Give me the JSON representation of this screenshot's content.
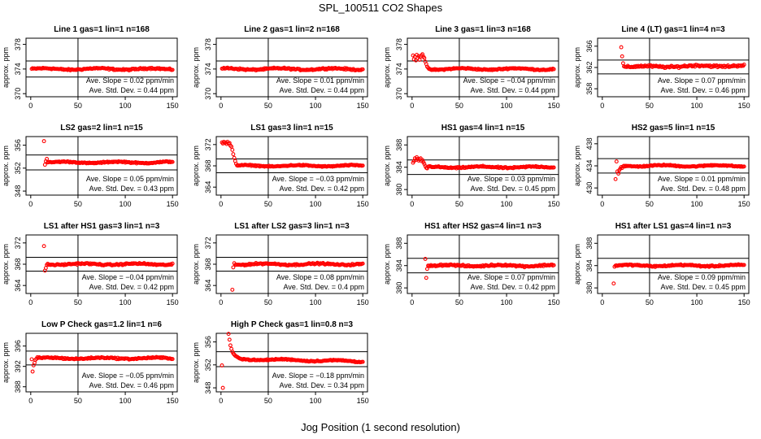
{
  "title": "SPL_100511  CO2 Shapes",
  "xlabel": "Jog Position (1 second resolution)",
  "chart_data": [
    {
      "type": "scatter",
      "title": "Line 1 gas=1 lin=1 n=168",
      "ylabel": "approx. ppm",
      "xlim": [
        -5,
        155
      ],
      "ylim": [
        369.5,
        379
      ],
      "xticks": [
        0,
        50,
        100,
        150
      ],
      "yticks": [
        370,
        374,
        378
      ],
      "hlines": [
        375.3,
        372.7
      ],
      "vline": 50,
      "baseline": 374.0,
      "noise": 0.18,
      "start_x": 1,
      "end_x": 150,
      "slope": 0.0,
      "early": [],
      "annotation": {
        "slope": "Ave. Slope =  0.02  ppm/min",
        "std": "Ave. Std. Dev. =  0.44  ppm"
      }
    },
    {
      "type": "scatter",
      "title": "Line 2 gas=1 lin=2 n=168",
      "ylabel": "approx. ppm",
      "xlim": [
        -5,
        155
      ],
      "ylim": [
        369.5,
        379
      ],
      "xticks": [
        0,
        50,
        100,
        150
      ],
      "yticks": [
        370,
        374,
        378
      ],
      "hlines": [
        375.3,
        372.7
      ],
      "vline": 50,
      "baseline": 374.0,
      "noise": 0.18,
      "start_x": 1,
      "end_x": 150,
      "slope": 0.0,
      "early": [],
      "annotation": {
        "slope": "Ave. Slope =  0.01  ppm/min",
        "std": "Ave. Std. Dev. =  0.44  ppm"
      }
    },
    {
      "type": "scatter",
      "title": "Line 3 gas=1 lin=3 n=168",
      "ylabel": "approx. ppm",
      "xlim": [
        -5,
        155
      ],
      "ylim": [
        369.5,
        379
      ],
      "xticks": [
        0,
        50,
        100,
        150
      ],
      "yticks": [
        370,
        374,
        378
      ],
      "hlines": [
        375.3,
        372.7
      ],
      "vline": 50,
      "baseline": 374.0,
      "noise": 0.15,
      "start_x": 18,
      "end_x": 150,
      "slope": 0.0,
      "early": [
        [
          1,
          376.2
        ],
        [
          2,
          375.6
        ],
        [
          3,
          376.0
        ],
        [
          4,
          375.4
        ],
        [
          5,
          376.3
        ],
        [
          6,
          375.8
        ],
        [
          7,
          376.1
        ],
        [
          8,
          375.5
        ],
        [
          9,
          376.0
        ],
        [
          10,
          376.2
        ],
        [
          11,
          376.4
        ],
        [
          12,
          376.0
        ],
        [
          13,
          375.8
        ],
        [
          14,
          375.2
        ],
        [
          15,
          374.8
        ],
        [
          16,
          374.4
        ],
        [
          17,
          374.2
        ]
      ],
      "annotation": {
        "slope": "Ave. Slope =  −0.04  ppm/min",
        "std": "Ave. Std. Dev. =  0.44  ppm"
      }
    },
    {
      "type": "scatter",
      "title": "Line 4 (LT) gas=1 lin=4 n=3",
      "ylabel": "approx. ppm",
      "xlim": [
        -5,
        155
      ],
      "ylim": [
        356.5,
        367.5
      ],
      "xticks": [
        0,
        50,
        100,
        150
      ],
      "yticks": [
        358,
        362,
        366
      ],
      "hlines": [
        363.4,
        360.8
      ],
      "vline": 50,
      "baseline": 362.1,
      "noise": 0.3,
      "start_x": 24,
      "end_x": 150,
      "slope": 0.002,
      "early": [
        [
          20,
          365.8
        ],
        [
          21,
          364.1
        ],
        [
          22,
          362.8
        ],
        [
          23,
          362.2
        ]
      ],
      "annotation": {
        "slope": "Ave. Slope =  0.07  ppm/min",
        "std": "Ave. Std. Dev. =  0.46  ppm"
      }
    },
    {
      "type": "scatter",
      "title": "LS2 gas=2 lin=1 n=15",
      "ylabel": "approx. ppm",
      "xlim": [
        -5,
        155
      ],
      "ylim": [
        347.3,
        357.5
      ],
      "xticks": [
        0,
        50,
        100,
        150
      ],
      "yticks": [
        348,
        352,
        356
      ],
      "hlines": [
        354.3,
        351.7
      ],
      "vline": 50,
      "baseline": 353.0,
      "noise": 0.15,
      "start_x": 18,
      "end_x": 150,
      "slope": 0.0,
      "early": [
        [
          14,
          356.7
        ],
        [
          15,
          352.6
        ],
        [
          16,
          353.2
        ],
        [
          17,
          353.6
        ]
      ],
      "annotation": {
        "slope": "Ave. Slope =  0.05  ppm/min",
        "std": "Ave. Std. Dev. =  0.43  ppm"
      }
    },
    {
      "type": "scatter",
      "title": "LS1 gas=3 lin=1 n=15",
      "ylabel": "approx. ppm",
      "xlim": [
        -5,
        155
      ],
      "ylim": [
        362.5,
        373.5
      ],
      "xticks": [
        0,
        50,
        100,
        150
      ],
      "yticks": [
        364,
        368,
        372
      ],
      "hlines": [
        369.3,
        366.7
      ],
      "vline": 50,
      "baseline": 368.0,
      "noise": 0.15,
      "start_x": 17,
      "end_x": 150,
      "slope": 0.0,
      "early": [
        [
          1,
          372.4
        ],
        [
          2,
          372.2
        ],
        [
          3,
          372.5
        ],
        [
          4,
          372.3
        ],
        [
          5,
          372.4
        ],
        [
          6,
          372.1
        ],
        [
          7,
          372.5
        ],
        [
          8,
          372.2
        ],
        [
          9,
          372.3
        ],
        [
          10,
          371.8
        ],
        [
          11,
          371.6
        ],
        [
          12,
          371.0
        ],
        [
          13,
          370.2
        ],
        [
          14,
          369.5
        ],
        [
          15,
          368.9
        ],
        [
          16,
          368.4
        ]
      ],
      "annotation": {
        "slope": "Ave. Slope =  −0.03  ppm/min",
        "std": "Ave. Std. Dev. =  0.42  ppm"
      }
    },
    {
      "type": "scatter",
      "title": "HS1 gas=4 lin=1 n=15",
      "ylabel": "approx. ppm",
      "xlim": [
        -5,
        155
      ],
      "ylim": [
        379,
        389.5
      ],
      "xticks": [
        0,
        50,
        100,
        150
      ],
      "yticks": [
        380,
        384,
        388
      ],
      "hlines": [
        385.3,
        382.7
      ],
      "vline": 50,
      "baseline": 384.0,
      "noise": 0.18,
      "start_x": 18,
      "end_x": 150,
      "slope": 0.0,
      "early": [
        [
          1,
          384.8
        ],
        [
          2,
          385.1
        ],
        [
          3,
          385.6
        ],
        [
          4,
          385.3
        ],
        [
          5,
          385.8
        ],
        [
          6,
          385.5
        ],
        [
          7,
          385.2
        ],
        [
          8,
          385.4
        ],
        [
          9,
          385.6
        ],
        [
          10,
          385.1
        ],
        [
          11,
          385.3
        ],
        [
          12,
          384.9
        ],
        [
          13,
          384.6
        ],
        [
          14,
          384.2
        ],
        [
          15,
          383.9
        ],
        [
          16,
          383.8
        ],
        [
          17,
          384.1
        ]
      ],
      "annotation": {
        "slope": "Ave. Slope =  0.03  ppm/min",
        "std": "Ave. Std. Dev. =  0.45  ppm"
      }
    },
    {
      "type": "scatter",
      "title": "HS2 gas=5 lin=1 n=15",
      "ylabel": "approx. ppm",
      "xlim": [
        -5,
        155
      ],
      "ylim": [
        428.7,
        439.3
      ],
      "xticks": [
        0,
        50,
        100,
        150
      ],
      "yticks": [
        430,
        434,
        438
      ],
      "hlines": [
        435.3,
        432.7
      ],
      "vline": 50,
      "baseline": 434.0,
      "noise": 0.15,
      "start_x": 24,
      "end_x": 150,
      "slope": 0.0,
      "early": [
        [
          14,
          431.6
        ],
        [
          15,
          434.8
        ],
        [
          16,
          433.0
        ],
        [
          17,
          432.6
        ],
        [
          18,
          433.2
        ],
        [
          19,
          433.5
        ],
        [
          20,
          433.8
        ],
        [
          21,
          433.6
        ],
        [
          22,
          433.9
        ],
        [
          23,
          434.0
        ]
      ],
      "annotation": {
        "slope": "Ave. Slope =  0.01  ppm/min",
        "std": "Ave. Std. Dev. =  0.48  ppm"
      }
    },
    {
      "type": "scatter",
      "title": "LS1 after HS1 gas=3 lin=1 n=3",
      "ylabel": "approx. ppm",
      "xlim": [
        -5,
        155
      ],
      "ylim": [
        362.5,
        373.5
      ],
      "xticks": [
        0,
        50,
        100,
        150
      ],
      "yticks": [
        364,
        368,
        372
      ],
      "hlines": [
        369.3,
        366.7
      ],
      "vline": 50,
      "baseline": 368.0,
      "noise": 0.2,
      "start_x": 18,
      "end_x": 150,
      "slope": 0.0,
      "early": [
        [
          14,
          371.4
        ],
        [
          15,
          366.8
        ],
        [
          16,
          367.3
        ],
        [
          17,
          367.9
        ]
      ],
      "annotation": {
        "slope": "Ave. Slope =  −0.04  ppm/min",
        "std": "Ave. Std. Dev. =  0.42  ppm"
      }
    },
    {
      "type": "scatter",
      "title": "LS1 after LS2 gas=3 lin=1 n=3",
      "ylabel": "approx. ppm",
      "xlim": [
        -5,
        155
      ],
      "ylim": [
        362.5,
        373.5
      ],
      "xticks": [
        0,
        50,
        100,
        150
      ],
      "yticks": [
        364,
        368,
        372
      ],
      "hlines": [
        369.3,
        366.7
      ],
      "vline": 50,
      "baseline": 368.0,
      "noise": 0.2,
      "start_x": 15,
      "end_x": 150,
      "slope": 0.0,
      "early": [
        [
          12,
          363.2
        ],
        [
          13,
          367.4
        ],
        [
          14,
          368.2
        ]
      ],
      "annotation": {
        "slope": "Ave. Slope =  0.08  ppm/min",
        "std": "Ave. Std. Dev. =  0.4  ppm"
      }
    },
    {
      "type": "scatter",
      "title": "HS1 after HS2 gas=4 lin=1 n=3",
      "ylabel": "approx. ppm",
      "xlim": [
        -5,
        155
      ],
      "ylim": [
        379,
        389.5
      ],
      "xticks": [
        0,
        50,
        100,
        150
      ],
      "yticks": [
        380,
        384,
        388
      ],
      "hlines": [
        385.3,
        382.7
      ],
      "vline": 50,
      "baseline": 384.0,
      "noise": 0.22,
      "start_x": 18,
      "end_x": 150,
      "slope": 0.0,
      "early": [
        [
          14,
          385.2
        ],
        [
          15,
          381.8
        ],
        [
          16,
          383.4
        ],
        [
          17,
          384.0
        ]
      ],
      "annotation": {
        "slope": "Ave. Slope =  0.07  ppm/min",
        "std": "Ave. Std. Dev. =  0.42  ppm"
      }
    },
    {
      "type": "scatter",
      "title": "HS1 after LS1 gas=4 lin=1 n=3",
      "ylabel": "approx. ppm",
      "xlim": [
        -5,
        155
      ],
      "ylim": [
        379,
        389.5
      ],
      "xticks": [
        0,
        50,
        100,
        150
      ],
      "yticks": [
        380,
        384,
        388
      ],
      "hlines": [
        385.3,
        382.7
      ],
      "vline": 50,
      "baseline": 384.0,
      "noise": 0.18,
      "start_x": 15,
      "end_x": 150,
      "slope": 0.0,
      "early": [
        [
          12,
          380.8
        ],
        [
          13,
          383.8
        ],
        [
          14,
          384.0
        ]
      ],
      "annotation": {
        "slope": "Ave. Slope =  0.09  ppm/min",
        "std": "Ave. Std. Dev. =  0.45  ppm"
      }
    },
    {
      "type": "scatter",
      "title": "Low P Check gas=1.2 lin=1 n=6",
      "ylabel": "approx. ppm",
      "xlim": [
        -5,
        155
      ],
      "ylim": [
        387,
        398.5
      ],
      "xticks": [
        0,
        50,
        100,
        150
      ],
      "yticks": [
        388,
        392,
        396
      ],
      "hlines": [
        395.0,
        392.3
      ],
      "vline": 50,
      "baseline": 393.6,
      "noise": 0.2,
      "start_x": 8,
      "end_x": 150,
      "slope": 0.0,
      "early": [
        [
          1,
          393.4
        ],
        [
          2,
          391.0
        ],
        [
          3,
          392.2
        ],
        [
          4,
          392.7
        ],
        [
          5,
          393.3
        ],
        [
          6,
          393.5
        ],
        [
          7,
          393.8
        ]
      ],
      "annotation": {
        "slope": "Ave. Slope =  −0.05  ppm/min",
        "std": "Ave. Std. Dev. =  0.46  ppm"
      }
    },
    {
      "type": "scatter",
      "title": "High P Check gas=1 lin=0.8 n=3",
      "ylabel": "approx. ppm",
      "xlim": [
        -5,
        155
      ],
      "ylim": [
        347.3,
        357.5
      ],
      "xticks": [
        0,
        50,
        100,
        150
      ],
      "yticks": [
        348,
        352,
        356
      ],
      "hlines": [
        354.3,
        351.7
      ],
      "vline": 50,
      "baseline": 353.0,
      "noise": 0.15,
      "start_x": 20,
      "end_x": 150,
      "slope": -0.003,
      "early": [
        [
          1,
          351.9
        ],
        [
          2,
          348.0
        ],
        [
          8,
          357.4
        ],
        [
          9,
          356.4
        ],
        [
          10,
          355.4
        ],
        [
          11,
          354.8
        ],
        [
          12,
          354.3
        ],
        [
          13,
          354.0
        ],
        [
          14,
          353.8
        ],
        [
          15,
          353.6
        ],
        [
          16,
          353.5
        ],
        [
          17,
          353.4
        ],
        [
          18,
          353.3
        ],
        [
          19,
          353.2
        ]
      ],
      "annotation": {
        "slope": "Ave. Slope =  −0.18  ppm/min",
        "std": "Ave. Std. Dev. =  0.34  ppm"
      }
    }
  ],
  "colors": {
    "points": "#ff0000",
    "axes": "#000000",
    "background": "#ffffff"
  }
}
